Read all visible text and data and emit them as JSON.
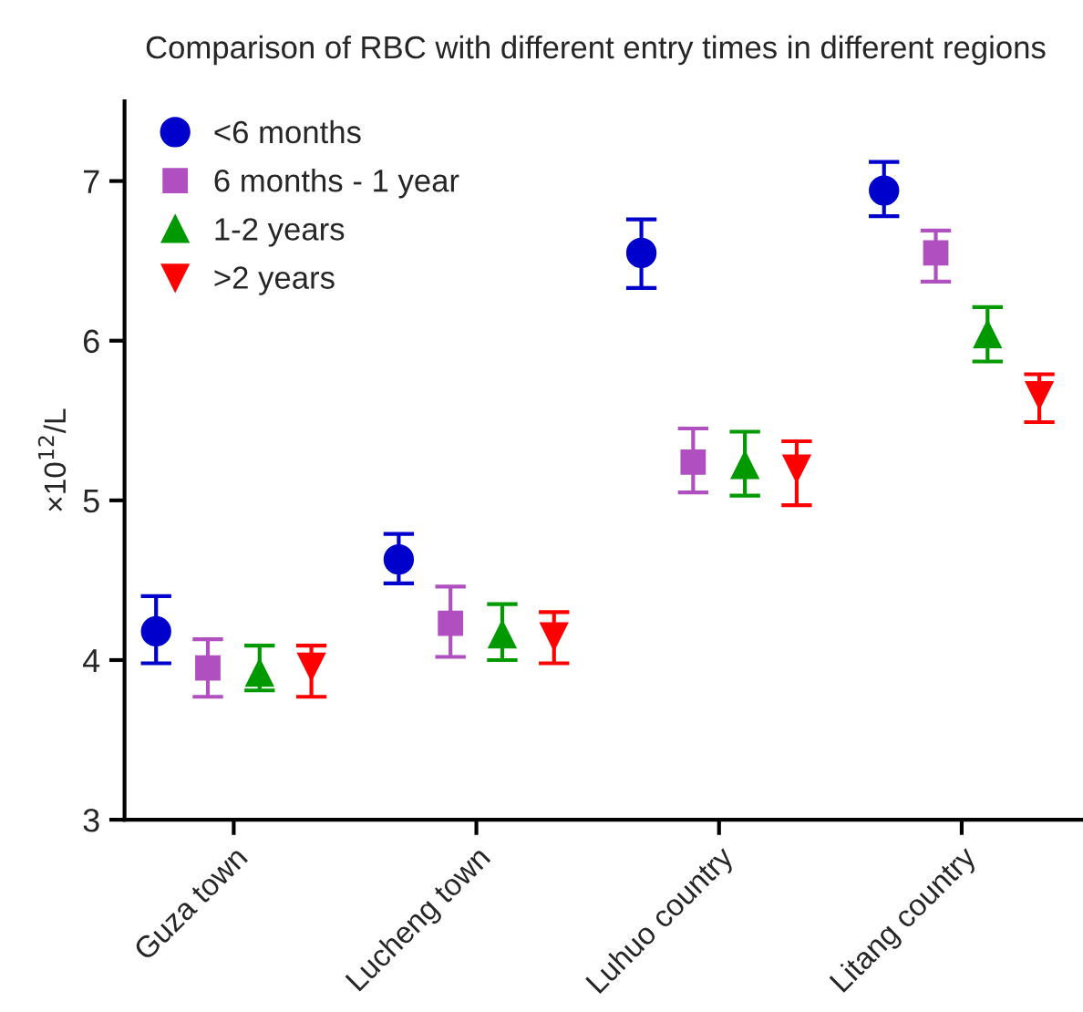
{
  "chart_data": {
    "type": "scatter",
    "title": "Comparison of RBC with different entry times in different regions",
    "ylabel": "×10$^{12}$/L",
    "categories": [
      "Guza town",
      "Lucheng town",
      "Luhuo country",
      "Litang country"
    ],
    "ylim": [
      3,
      7.5
    ],
    "yticks": [
      3,
      4,
      5,
      6,
      7
    ],
    "grid": false,
    "legend": "top left",
    "series": [
      {
        "name": "<6 months",
        "color": "#0000cc",
        "marker": "circle",
        "values": [
          4.18,
          4.63,
          6.55,
          6.94
        ],
        "errors": [
          [
            3.98,
            4.4
          ],
          [
            4.48,
            4.79
          ],
          [
            6.33,
            6.76
          ],
          [
            6.78,
            7.12
          ]
        ]
      },
      {
        "name": "6 months - 1 year",
        "color": "#b050c0",
        "marker": "square",
        "values": [
          3.95,
          4.23,
          5.24,
          6.55
        ],
        "errors": [
          [
            3.77,
            4.13
          ],
          [
            4.02,
            4.46
          ],
          [
            5.05,
            5.45
          ],
          [
            6.37,
            6.69
          ]
        ]
      },
      {
        "name": "1-2 years",
        "color": "#009900",
        "marker": "triangle",
        "values": [
          3.92,
          4.16,
          5.22,
          6.04
        ],
        "errors": [
          [
            3.81,
            4.09
          ],
          [
            4.0,
            4.35
          ],
          [
            5.03,
            5.43
          ],
          [
            5.87,
            6.21
          ]
        ]
      },
      {
        "name": ">2 years",
        "color": "#ff0000",
        "marker": "triangle_down",
        "values": [
          3.96,
          4.15,
          5.2,
          5.66
        ],
        "errors": [
          [
            3.77,
            4.09
          ],
          [
            3.98,
            4.3
          ],
          [
            4.97,
            5.37
          ],
          [
            5.49,
            5.79
          ]
        ]
      }
    ]
  }
}
